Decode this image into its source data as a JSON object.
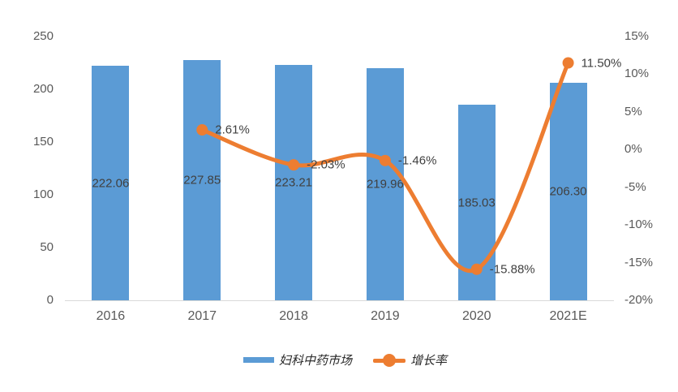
{
  "chart_data": {
    "type": "bar+line",
    "categories": [
      "2016",
      "2017",
      "2018",
      "2019",
      "2020",
      "2021E"
    ],
    "series": [
      {
        "name": "妇科中药市场",
        "type": "bar",
        "axis": "left",
        "color": "#5B9BD5",
        "values": [
          222.06,
          227.85,
          223.21,
          219.96,
          185.03,
          206.3
        ],
        "data_labels": [
          "222.06",
          "227.85",
          "223.21",
          "219.96",
          "185.03",
          "206.30"
        ]
      },
      {
        "name": "增长率",
        "type": "line",
        "axis": "right",
        "color": "#ED7D31",
        "values": [
          null,
          2.61,
          -2.03,
          -1.46,
          -15.88,
          11.5
        ],
        "data_labels": [
          "",
          "2.61%",
          "-2.03%",
          "-1.46%",
          "-15.88%",
          "11.50%"
        ]
      }
    ],
    "left_axis": {
      "min": 0,
      "max": 250,
      "step": 50,
      "ticks": [
        "0",
        "50",
        "100",
        "150",
        "200",
        "250"
      ]
    },
    "right_axis": {
      "min": -20,
      "max": 15,
      "step": 5,
      "ticks": [
        "-20%",
        "-15%",
        "-10%",
        "-5%",
        "0%",
        "5%",
        "10%",
        "15%"
      ]
    },
    "grid": false,
    "legend": {
      "position": "bottom",
      "items": [
        {
          "label": "妇科中药市场",
          "swatch": "bar"
        },
        {
          "label": "增长率",
          "swatch": "line-dot"
        }
      ]
    }
  },
  "colors": {
    "bar": "#5B9BD5",
    "line": "#ED7D31",
    "axis_text": "#595959",
    "data_label": "#404040",
    "axis_line": "#D9D9D9",
    "legend_text": "#262626",
    "background": "#FFFFFF"
  }
}
